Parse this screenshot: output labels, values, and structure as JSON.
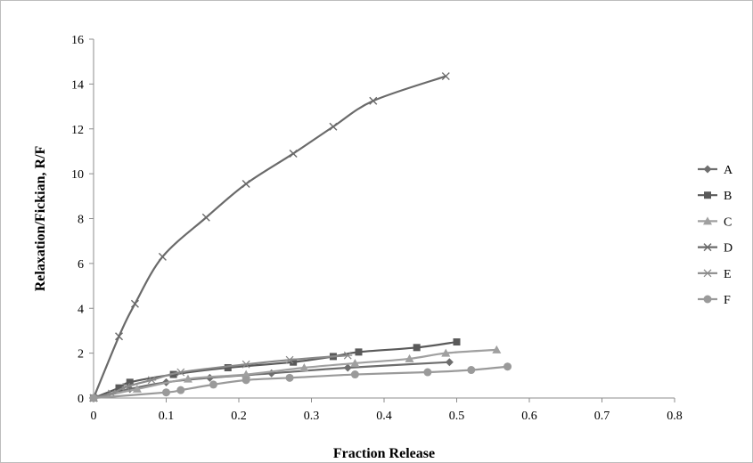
{
  "chart_data": {
    "type": "scatter",
    "title": "",
    "xlabel": "Fraction Release",
    "ylabel": "Relaxation/Fickian, R/F",
    "xlim": [
      0,
      0.8
    ],
    "ylim": [
      0,
      16
    ],
    "x_ticks": [
      0,
      0.1,
      0.2,
      0.3,
      0.4,
      0.5,
      0.6,
      0.7,
      0.8
    ],
    "y_ticks": [
      0,
      2,
      4,
      6,
      8,
      10,
      12,
      14,
      16
    ],
    "x_tick_labels": [
      "0",
      "0.1",
      "0.2",
      "0.3",
      "0.4",
      "0.5",
      "0.6",
      "0.7",
      "0.8"
    ],
    "y_tick_labels": [
      "0",
      "2",
      "4",
      "6",
      "8",
      "10",
      "12",
      "14",
      "16"
    ],
    "grid": false,
    "legend_position": "right",
    "line_style": "smooth lines with markers",
    "series": [
      {
        "name": "A",
        "marker": "diamond",
        "color": "#6e6e6e",
        "x": [
          0,
          0.05,
          0.1,
          0.16,
          0.245,
          0.35,
          0.49
        ],
        "y": [
          0,
          0.4,
          0.7,
          0.9,
          1.1,
          1.35,
          1.6
        ]
      },
      {
        "name": "B",
        "marker": "square",
        "color": "#5a5a5a",
        "x": [
          0,
          0.035,
          0.05,
          0.11,
          0.185,
          0.275,
          0.33,
          0.365,
          0.445,
          0.5
        ],
        "y": [
          0,
          0.45,
          0.7,
          1.05,
          1.35,
          1.6,
          1.85,
          2.05,
          2.25,
          2.5
        ]
      },
      {
        "name": "C",
        "marker": "triangle",
        "color": "#a0a0a0",
        "x": [
          0,
          0.06,
          0.13,
          0.21,
          0.29,
          0.36,
          0.435,
          0.485,
          0.555
        ],
        "y": [
          0,
          0.4,
          0.85,
          1.05,
          1.35,
          1.55,
          1.75,
          2.0,
          2.15
        ]
      },
      {
        "name": "D",
        "marker": "x",
        "color": "#6a6a6a",
        "x": [
          0,
          0.035,
          0.057,
          0.095,
          0.155,
          0.21,
          0.275,
          0.33,
          0.385,
          0.485
        ],
        "y": [
          0,
          2.75,
          4.2,
          6.3,
          8.05,
          9.55,
          10.9,
          12.1,
          13.25,
          14.35
        ]
      },
      {
        "name": "E",
        "marker": "asterisk",
        "color": "#8a8a8a",
        "x": [
          0,
          0.025,
          0.045,
          0.08,
          0.12,
          0.21,
          0.27,
          0.35
        ],
        "y": [
          0,
          0.2,
          0.5,
          0.8,
          1.15,
          1.5,
          1.7,
          1.9
        ]
      },
      {
        "name": "F",
        "marker": "circle",
        "color": "#9a9a9a",
        "x": [
          0,
          0.1,
          0.12,
          0.165,
          0.21,
          0.27,
          0.36,
          0.46,
          0.52,
          0.57
        ],
        "y": [
          0,
          0.25,
          0.35,
          0.6,
          0.8,
          0.9,
          1.05,
          1.15,
          1.25,
          1.4
        ]
      }
    ]
  }
}
